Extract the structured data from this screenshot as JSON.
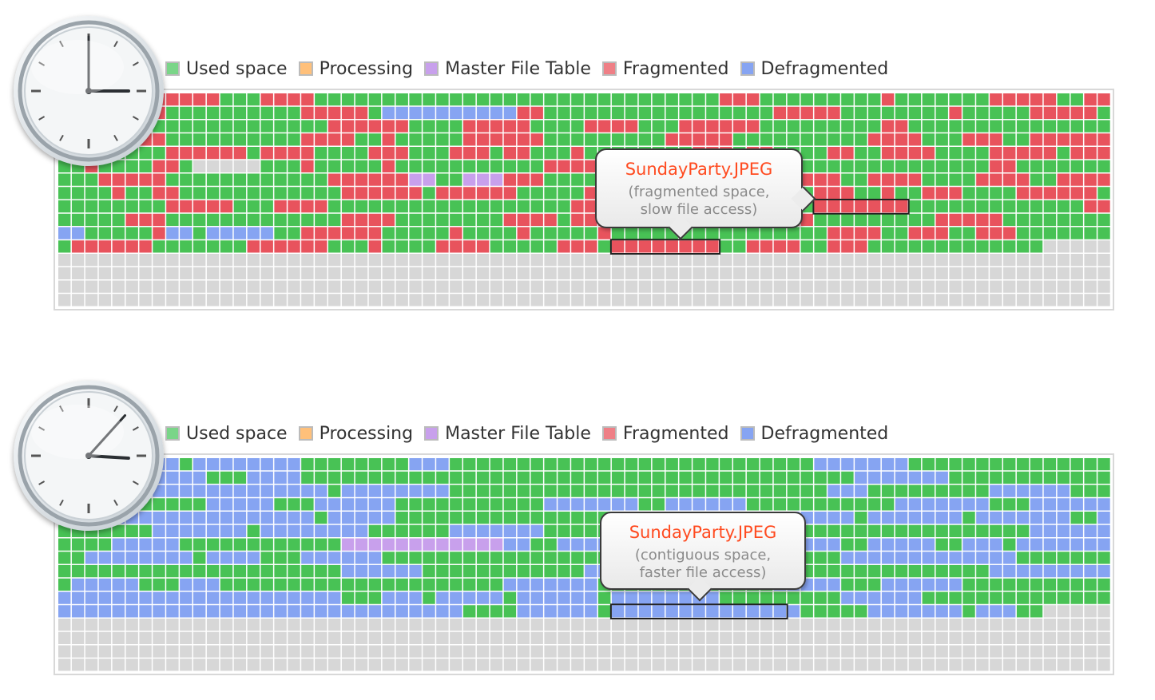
{
  "colors": {
    "used": "#48c255",
    "processing": "#ffc07a",
    "mft": "#c8a0ec",
    "fragmented": "#e8535d",
    "defragmented": "#86a4f2",
    "free": "#d7d7d7",
    "accent_title": "#ff4a1f"
  },
  "legend": [
    {
      "label": "Used space",
      "color": "#7ad588"
    },
    {
      "label": "Processing",
      "color": "#ffc07a"
    },
    {
      "label": "Master File Table",
      "color": "#c8a0ec"
    },
    {
      "label": "Fragmented",
      "color": "#ef7f86"
    },
    {
      "label": "Defragmented",
      "color": "#86a4f2"
    }
  ],
  "before": {
    "clock_time": "3:00",
    "callout": {
      "title": "SundayParty.JPEG",
      "desc_line1": "(fragmented space,",
      "desc_line2": "slow file access)"
    }
  },
  "after": {
    "clock_time": "3:07",
    "callout": {
      "title": "SundayParty.JPEG",
      "desc_line1": "(contiguous space,",
      "desc_line2": "faster file access)"
    }
  }
}
